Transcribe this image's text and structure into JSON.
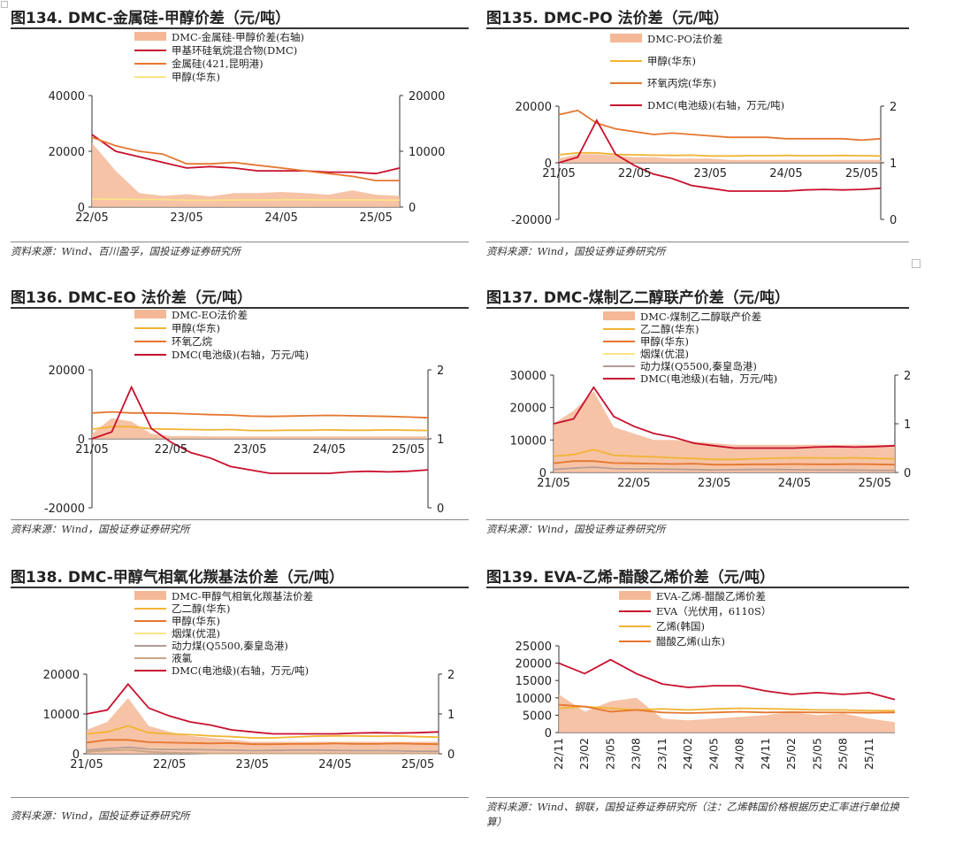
{
  "source_note_2": "资料来源：Wind、百川盈孚，国投证券证券研究所",
  "source_note_1": "资料来源：Wind，国投证券证券研究所",
  "source_note_3": "资料来源：Wind、钢联，国投证券证券研究所（注：乙烯韩国价格根据历史汇率进行单位换算）",
  "colors": {
    "red": "#c8102e",
    "orange": "#e6762e",
    "yellow": "#f1b434",
    "lightyellow": "#fbe38a",
    "mauve": "#b69a9a",
    "tan": "#c9a585",
    "fill": "#f5b896"
  },
  "chart_data": [
    {
      "id": "fig134",
      "type": "area+line",
      "title": "图134. DMC-金属硅-甲醇价差（元/吨）",
      "x_ticks": [
        "22/05",
        "23/05",
        "24/05",
        "25/05"
      ],
      "x": [
        "22/05",
        "22/08",
        "22/11",
        "23/02",
        "23/05",
        "23/08",
        "23/11",
        "24/02",
        "24/05",
        "24/08",
        "24/11",
        "25/02",
        "25/05",
        "25/08"
      ],
      "yl": [
        0,
        40000
      ],
      "yl_ticks": [
        "0",
        "20000",
        "40000"
      ],
      "yr": [
        0,
        20000
      ],
      "yr_ticks": [
        "0",
        "10000",
        "20000"
      ],
      "series": [
        {
          "name": "DMC-金属硅-甲醇价差(右轴)",
          "type": "area",
          "axis": "right",
          "color": "#f5b896",
          "values": [
            11500,
            6500,
            2500,
            2000,
            2300,
            1900,
            2500,
            2500,
            2700,
            2500,
            2200,
            3000,
            2200,
            2000
          ]
        },
        {
          "name": "甲基环硅氧烷混合物(DMC)",
          "type": "line",
          "axis": "left",
          "color": "#c8102e",
          "values": [
            26000,
            20000,
            18000,
            16000,
            14000,
            14500,
            14000,
            13000,
            13000,
            13000,
            12500,
            12500,
            12000,
            14000
          ]
        },
        {
          "name": "金属硅(421,昆明港)",
          "type": "line",
          "axis": "left",
          "color": "#e6762e",
          "values": [
            25000,
            22000,
            20000,
            19000,
            15500,
            15500,
            16000,
            15000,
            14000,
            13000,
            12000,
            11000,
            9500,
            9500
          ]
        },
        {
          "name": "甲醇(华东)",
          "type": "line",
          "axis": "left",
          "color": "#fbe38a",
          "values": [
            2900,
            2800,
            2700,
            2700,
            2400,
            2400,
            2500,
            2500,
            2600,
            2600,
            2500,
            2600,
            2500,
            2400
          ]
        }
      ]
    },
    {
      "id": "fig135",
      "type": "area+line",
      "title": "图135. DMC-PO 法价差（元/吨）",
      "x_ticks": [
        "21/05",
        "22/05",
        "23/05",
        "24/05",
        "25/05"
      ],
      "x": [
        "21/05",
        "21/08",
        "21/11",
        "22/02",
        "22/05",
        "22/08",
        "22/11",
        "23/02",
        "23/05",
        "23/08",
        "23/11",
        "24/02",
        "24/05",
        "24/08",
        "24/11",
        "25/02",
        "25/05",
        "25/08"
      ],
      "yl": [
        -20000,
        20000
      ],
      "yl_ticks": [
        "-20000",
        "0",
        "20000"
      ],
      "yr": [
        0,
        2
      ],
      "yr_ticks": [
        "0",
        "1",
        "2"
      ],
      "series": [
        {
          "name": "DMC-PO法价差",
          "type": "area",
          "axis": "left",
          "color": "#f5b896",
          "values": [
            1500,
            3000,
            3000,
            2500,
            2000,
            2000,
            1500,
            1500,
            1500,
            1000,
            1000,
            1000,
            1000,
            1000,
            1000,
            1000,
            1000,
            1000
          ]
        },
        {
          "name": "甲醇(华东)",
          "type": "line",
          "axis": "left",
          "color": "#f1b434",
          "values": [
            2800,
            3500,
            3500,
            2900,
            2800,
            2700,
            2600,
            2700,
            2400,
            2400,
            2500,
            2500,
            2600,
            2500,
            2500,
            2600,
            2500,
            2400
          ]
        },
        {
          "name": "环氧丙烷(华东)",
          "type": "line",
          "axis": "left",
          "color": "#e6762e",
          "values": [
            17000,
            18500,
            14000,
            12000,
            11000,
            10000,
            10500,
            10000,
            9500,
            9000,
            9000,
            9000,
            8500,
            8500,
            8500,
            8500,
            8000,
            8500
          ]
        },
        {
          "name": "DMC(电池级)(右轴，万元/吨)",
          "type": "line",
          "axis": "right",
          "color": "#c8102e",
          "values": [
            1.0,
            1.1,
            1.75,
            1.15,
            0.95,
            0.8,
            0.72,
            0.6,
            0.55,
            0.5,
            0.5,
            0.5,
            0.5,
            0.52,
            0.53,
            0.52,
            0.53,
            0.55
          ]
        }
      ]
    },
    {
      "id": "fig136",
      "type": "area+line",
      "title": "图136. DMC-EO 法价差（元/吨）",
      "x_ticks": [
        "21/05",
        "22/05",
        "23/05",
        "24/05",
        "25/05"
      ],
      "x": [
        "21/05",
        "21/08",
        "21/11",
        "22/02",
        "22/05",
        "22/08",
        "22/11",
        "23/02",
        "23/05",
        "23/08",
        "23/11",
        "24/02",
        "24/05",
        "24/08",
        "24/11",
        "25/02",
        "25/05",
        "25/08"
      ],
      "yl": [
        -20000,
        20000
      ],
      "yl_ticks": [
        "-20000",
        "0",
        "20000"
      ],
      "yr": [
        0,
        2
      ],
      "yr_ticks": [
        "0",
        "1",
        "2"
      ],
      "series": [
        {
          "name": "DMC-EO法价差",
          "type": "area",
          "axis": "left",
          "color": "#f5b896",
          "values": [
            1500,
            6000,
            5000,
            1500,
            800,
            800,
            700,
            700,
            700,
            700,
            700,
            700,
            700,
            700,
            700,
            700,
            700,
            700
          ]
        },
        {
          "name": "甲醇(华东)",
          "type": "line",
          "axis": "left",
          "color": "#f1b434",
          "values": [
            2800,
            3500,
            3500,
            2900,
            2800,
            2700,
            2600,
            2700,
            2400,
            2400,
            2500,
            2500,
            2600,
            2500,
            2500,
            2600,
            2500,
            2400
          ]
        },
        {
          "name": "环氧乙烷",
          "type": "line",
          "axis": "left",
          "color": "#e6762e",
          "values": [
            7500,
            7800,
            7500,
            7500,
            7400,
            7200,
            7000,
            6900,
            6600,
            6500,
            6600,
            6700,
            6800,
            6700,
            6600,
            6500,
            6300,
            6100
          ]
        },
        {
          "name": "DMC(电池级)(右轴，万元/吨)",
          "type": "line",
          "axis": "right",
          "color": "#c8102e",
          "values": [
            1.0,
            1.1,
            1.75,
            1.15,
            0.95,
            0.8,
            0.72,
            0.6,
            0.55,
            0.5,
            0.5,
            0.5,
            0.5,
            0.52,
            0.53,
            0.52,
            0.53,
            0.55
          ]
        }
      ]
    },
    {
      "id": "fig137",
      "type": "area+line",
      "title": "图137. DMC-煤制乙二醇联产价差（元/吨）",
      "x_ticks": [
        "21/05",
        "22/05",
        "23/05",
        "24/05",
        "25/05"
      ],
      "x": [
        "21/05",
        "21/08",
        "21/11",
        "22/02",
        "22/05",
        "22/08",
        "22/11",
        "23/02",
        "23/05",
        "23/08",
        "23/11",
        "24/02",
        "24/05",
        "24/08",
        "24/11",
        "25/02",
        "25/05",
        "25/08"
      ],
      "yl": [
        0,
        30000
      ],
      "yl_ticks": [
        "0",
        "10000",
        "20000",
        "30000"
      ],
      "yr": [
        0,
        2
      ],
      "yr_ticks": [
        "0",
        "1",
        "2"
      ],
      "series": [
        {
          "name": "DMC-煤制乙二醇联产价差",
          "type": "area",
          "axis": "left",
          "color": "#f5b896",
          "values": [
            15000,
            19000,
            25000,
            14000,
            12000,
            10000,
            10000,
            9500,
            9000,
            8500,
            8500,
            8500,
            8500,
            8500,
            8500,
            8500,
            8500,
            8500
          ]
        },
        {
          "name": "乙二醇(华东)",
          "type": "line",
          "axis": "left",
          "color": "#f1b434",
          "values": [
            5000,
            5500,
            7000,
            5300,
            5000,
            4800,
            4500,
            4300,
            4000,
            4000,
            4200,
            4400,
            4500,
            4500,
            4400,
            4500,
            4300,
            4200
          ]
        },
        {
          "name": "甲醇(华东)",
          "type": "line",
          "axis": "left",
          "color": "#e6762e",
          "values": [
            2800,
            3500,
            3500,
            2900,
            2800,
            2700,
            2600,
            2700,
            2400,
            2400,
            2500,
            2500,
            2600,
            2500,
            2500,
            2600,
            2500,
            2400
          ]
        },
        {
          "name": "烟煤(优混)",
          "type": "line",
          "axis": "left",
          "color": "#fbe38a",
          "values": [
            900,
            1200,
            1500,
            1300,
            1200,
            1200,
            1100,
            1000,
            900,
            900,
            900,
            900,
            900,
            850,
            850,
            800,
            700,
            700
          ]
        },
        {
          "name": "动力煤(Q5500,秦皇岛港)",
          "type": "line",
          "axis": "left",
          "color": "#b69a9a",
          "values": [
            900,
            1300,
            1600,
            1200,
            1100,
            1100,
            1000,
            900,
            800,
            850,
            900,
            900,
            850,
            800,
            800,
            750,
            650,
            650
          ]
        },
        {
          "name": "DMC(电池级)(右轴，万元/吨)",
          "type": "line",
          "axis": "right",
          "color": "#c8102e",
          "values": [
            1.0,
            1.1,
            1.75,
            1.15,
            0.95,
            0.8,
            0.72,
            0.6,
            0.55,
            0.5,
            0.5,
            0.5,
            0.5,
            0.52,
            0.53,
            0.52,
            0.53,
            0.55
          ]
        }
      ]
    },
    {
      "id": "fig138",
      "type": "area+line",
      "title": "图138. DMC-甲醇气相氧化羰基法价差（元/吨）",
      "x_ticks": [
        "21/05",
        "22/05",
        "23/05",
        "24/05",
        "25/05"
      ],
      "x": [
        "21/05",
        "21/08",
        "21/11",
        "22/02",
        "22/05",
        "22/08",
        "22/11",
        "23/02",
        "23/05",
        "23/08",
        "23/11",
        "24/02",
        "24/05",
        "24/08",
        "24/11",
        "25/02",
        "25/05",
        "25/08"
      ],
      "yl": [
        0,
        20000
      ],
      "yl_ticks": [
        "0",
        "10000",
        "20000"
      ],
      "yr": [
        0,
        2
      ],
      "yr_ticks": [
        "0",
        "1",
        "2"
      ],
      "series": [
        {
          "name": "DMC-甲醇气相氧化羰基法价差",
          "type": "area",
          "axis": "left",
          "color": "#f5b896",
          "values": [
            6000,
            8000,
            14000,
            7000,
            5500,
            4500,
            4000,
            3500,
            3000,
            3000,
            3000,
            3000,
            3000,
            3000,
            3000,
            3000,
            3000,
            3000
          ]
        },
        {
          "name": "乙二醇(华东)",
          "type": "line",
          "axis": "left",
          "color": "#f1b434",
          "values": [
            5000,
            5500,
            7000,
            5300,
            5000,
            4800,
            4500,
            4300,
            4000,
            4000,
            4200,
            4400,
            4500,
            4500,
            4400,
            4500,
            4300,
            4200
          ]
        },
        {
          "name": "甲醇(华东)",
          "type": "line",
          "axis": "left",
          "color": "#e6762e",
          "values": [
            2800,
            3500,
            3500,
            2900,
            2800,
            2700,
            2600,
            2700,
            2400,
            2400,
            2500,
            2500,
            2600,
            2500,
            2500,
            2600,
            2500,
            2400
          ]
        },
        {
          "name": "烟煤(优混)",
          "type": "line",
          "axis": "left",
          "color": "#fbe38a",
          "values": [
            900,
            1200,
            1500,
            1300,
            1200,
            1200,
            1100,
            1000,
            900,
            900,
            900,
            900,
            900,
            850,
            850,
            800,
            700,
            700
          ]
        },
        {
          "name": "动力煤(Q5500,秦皇岛港)",
          "type": "line",
          "axis": "left",
          "color": "#b69a9a",
          "values": [
            900,
            1300,
            1600,
            1200,
            1100,
            1100,
            1000,
            900,
            800,
            850,
            900,
            900,
            850,
            800,
            800,
            750,
            650,
            650
          ]
        },
        {
          "name": "液氯",
          "type": "line",
          "axis": "left",
          "color": "#c9a585",
          "values": [
            500,
            800,
            1000,
            500,
            300,
            200,
            100,
            100,
            100,
            100,
            100,
            100,
            100,
            100,
            100,
            100,
            100,
            100
          ]
        },
        {
          "name": "DMC(电池级)(右轴，万元/吨)",
          "type": "line",
          "axis": "right",
          "color": "#c8102e",
          "values": [
            1.0,
            1.1,
            1.75,
            1.15,
            0.95,
            0.8,
            0.72,
            0.6,
            0.55,
            0.5,
            0.5,
            0.5,
            0.5,
            0.52,
            0.53,
            0.52,
            0.53,
            0.55
          ]
        }
      ]
    },
    {
      "id": "fig139",
      "type": "area+line",
      "title": "图139. EVA-乙烯-醋酸乙烯价差（元/吨）",
      "x_ticks": [
        "22/11",
        "23/02",
        "23/05",
        "23/08",
        "23/11",
        "24/02",
        "24/05",
        "24/08",
        "24/11",
        "25/02",
        "25/05",
        "25/08",
        "25/11"
      ],
      "x": [
        "22/11",
        "23/02",
        "23/05",
        "23/08",
        "23/11",
        "24/02",
        "24/05",
        "24/08",
        "24/11",
        "25/02",
        "25/05",
        "25/08",
        "25/11",
        "26/01"
      ],
      "yl": [
        0,
        25000
      ],
      "yl_ticks": [
        "0",
        "5000",
        "10000",
        "15000",
        "20000",
        "25000"
      ],
      "series": [
        {
          "name": "EVA-乙烯-醋酸乙烯价差",
          "type": "area",
          "axis": "left",
          "color": "#f5b896",
          "values": [
            11000,
            6000,
            9000,
            10000,
            4000,
            3500,
            4000,
            4500,
            5000,
            6000,
            5000,
            5500,
            4000,
            3000
          ]
        },
        {
          "name": "EVA（光伏用，6110S）",
          "type": "line",
          "axis": "left",
          "color": "#c8102e",
          "values": [
            20000,
            17000,
            21000,
            17000,
            14000,
            13000,
            13500,
            13500,
            12000,
            11000,
            11500,
            11000,
            11500,
            9500
          ]
        },
        {
          "name": "乙烯(韩国)",
          "type": "line",
          "axis": "left",
          "color": "#f1b434",
          "values": [
            7000,
            7500,
            7000,
            6500,
            6800,
            6500,
            6800,
            7000,
            6900,
            6700,
            6500,
            6500,
            6300,
            6300
          ]
        },
        {
          "name": "醋酸乙烯(山东)",
          "type": "line",
          "axis": "left",
          "color": "#e6762e",
          "values": [
            8000,
            7500,
            6000,
            6500,
            5800,
            5600,
            5800,
            6000,
            5800,
            5900,
            5800,
            5800,
            5700,
            5800
          ]
        }
      ]
    }
  ]
}
